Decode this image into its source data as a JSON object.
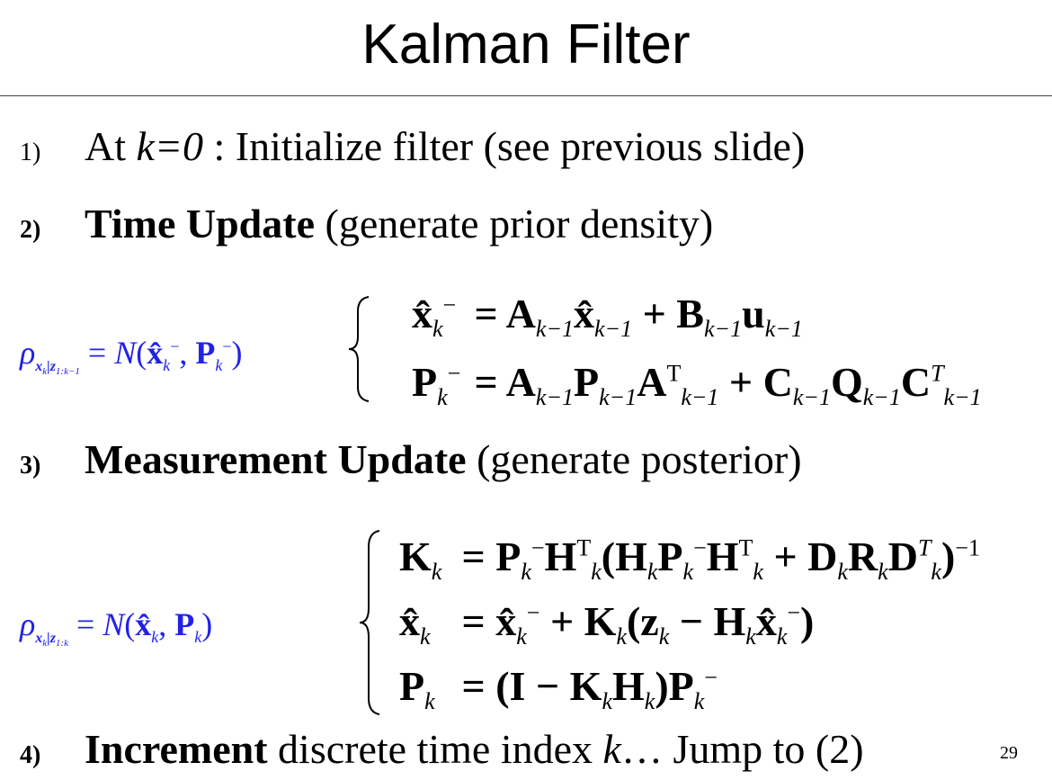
{
  "slide": {
    "title": "Kalman Filter",
    "page_number": "29"
  },
  "steps": [
    {
      "number": "1)",
      "prefix": "At ",
      "k_expr": "k=0",
      "rest": " : Initialize filter (see previous slide)"
    },
    {
      "number": "2)",
      "bold": "Time Update",
      "rest": " (generate prior density)"
    },
    {
      "number": "3)",
      "bold": "Measurement Update",
      "rest": " (generate posterior)"
    },
    {
      "number": "4)",
      "bold": "Increment",
      "rest_a": " discrete time index ",
      "k": "k",
      "rest_b": "… Jump to (2)"
    }
  ],
  "equations": {
    "prior_density": "ρ_{x_k|z_{1:k−1}} = N(x̂_k⁻, P_k⁻)",
    "time_update": [
      "x̂_k⁻ = A_{k−1} x̂_{k−1} + B_{k−1} u_{k−1}",
      "P_k⁻ = A_{k−1} P_{k−1} A_{k−1}^T + C_{k−1} Q_{k−1} C_{k−1}^T"
    ],
    "posterior_density": "ρ_{x_k|z_{1:k}} = N(x̂_k, P_k)",
    "measurement_update": [
      "K_k = P_k⁻ H_k^T (H_k P_k⁻ H_k^T + D_k R_k D_k^T)^{−1}",
      "x̂_k = x̂_k⁻ + K_k (z_k − H_k x̂_k⁻)",
      "P_k = (I − K_k H_k) P_k⁻"
    ]
  },
  "colors": {
    "density_text": "#2222e6",
    "text": "#000000"
  }
}
